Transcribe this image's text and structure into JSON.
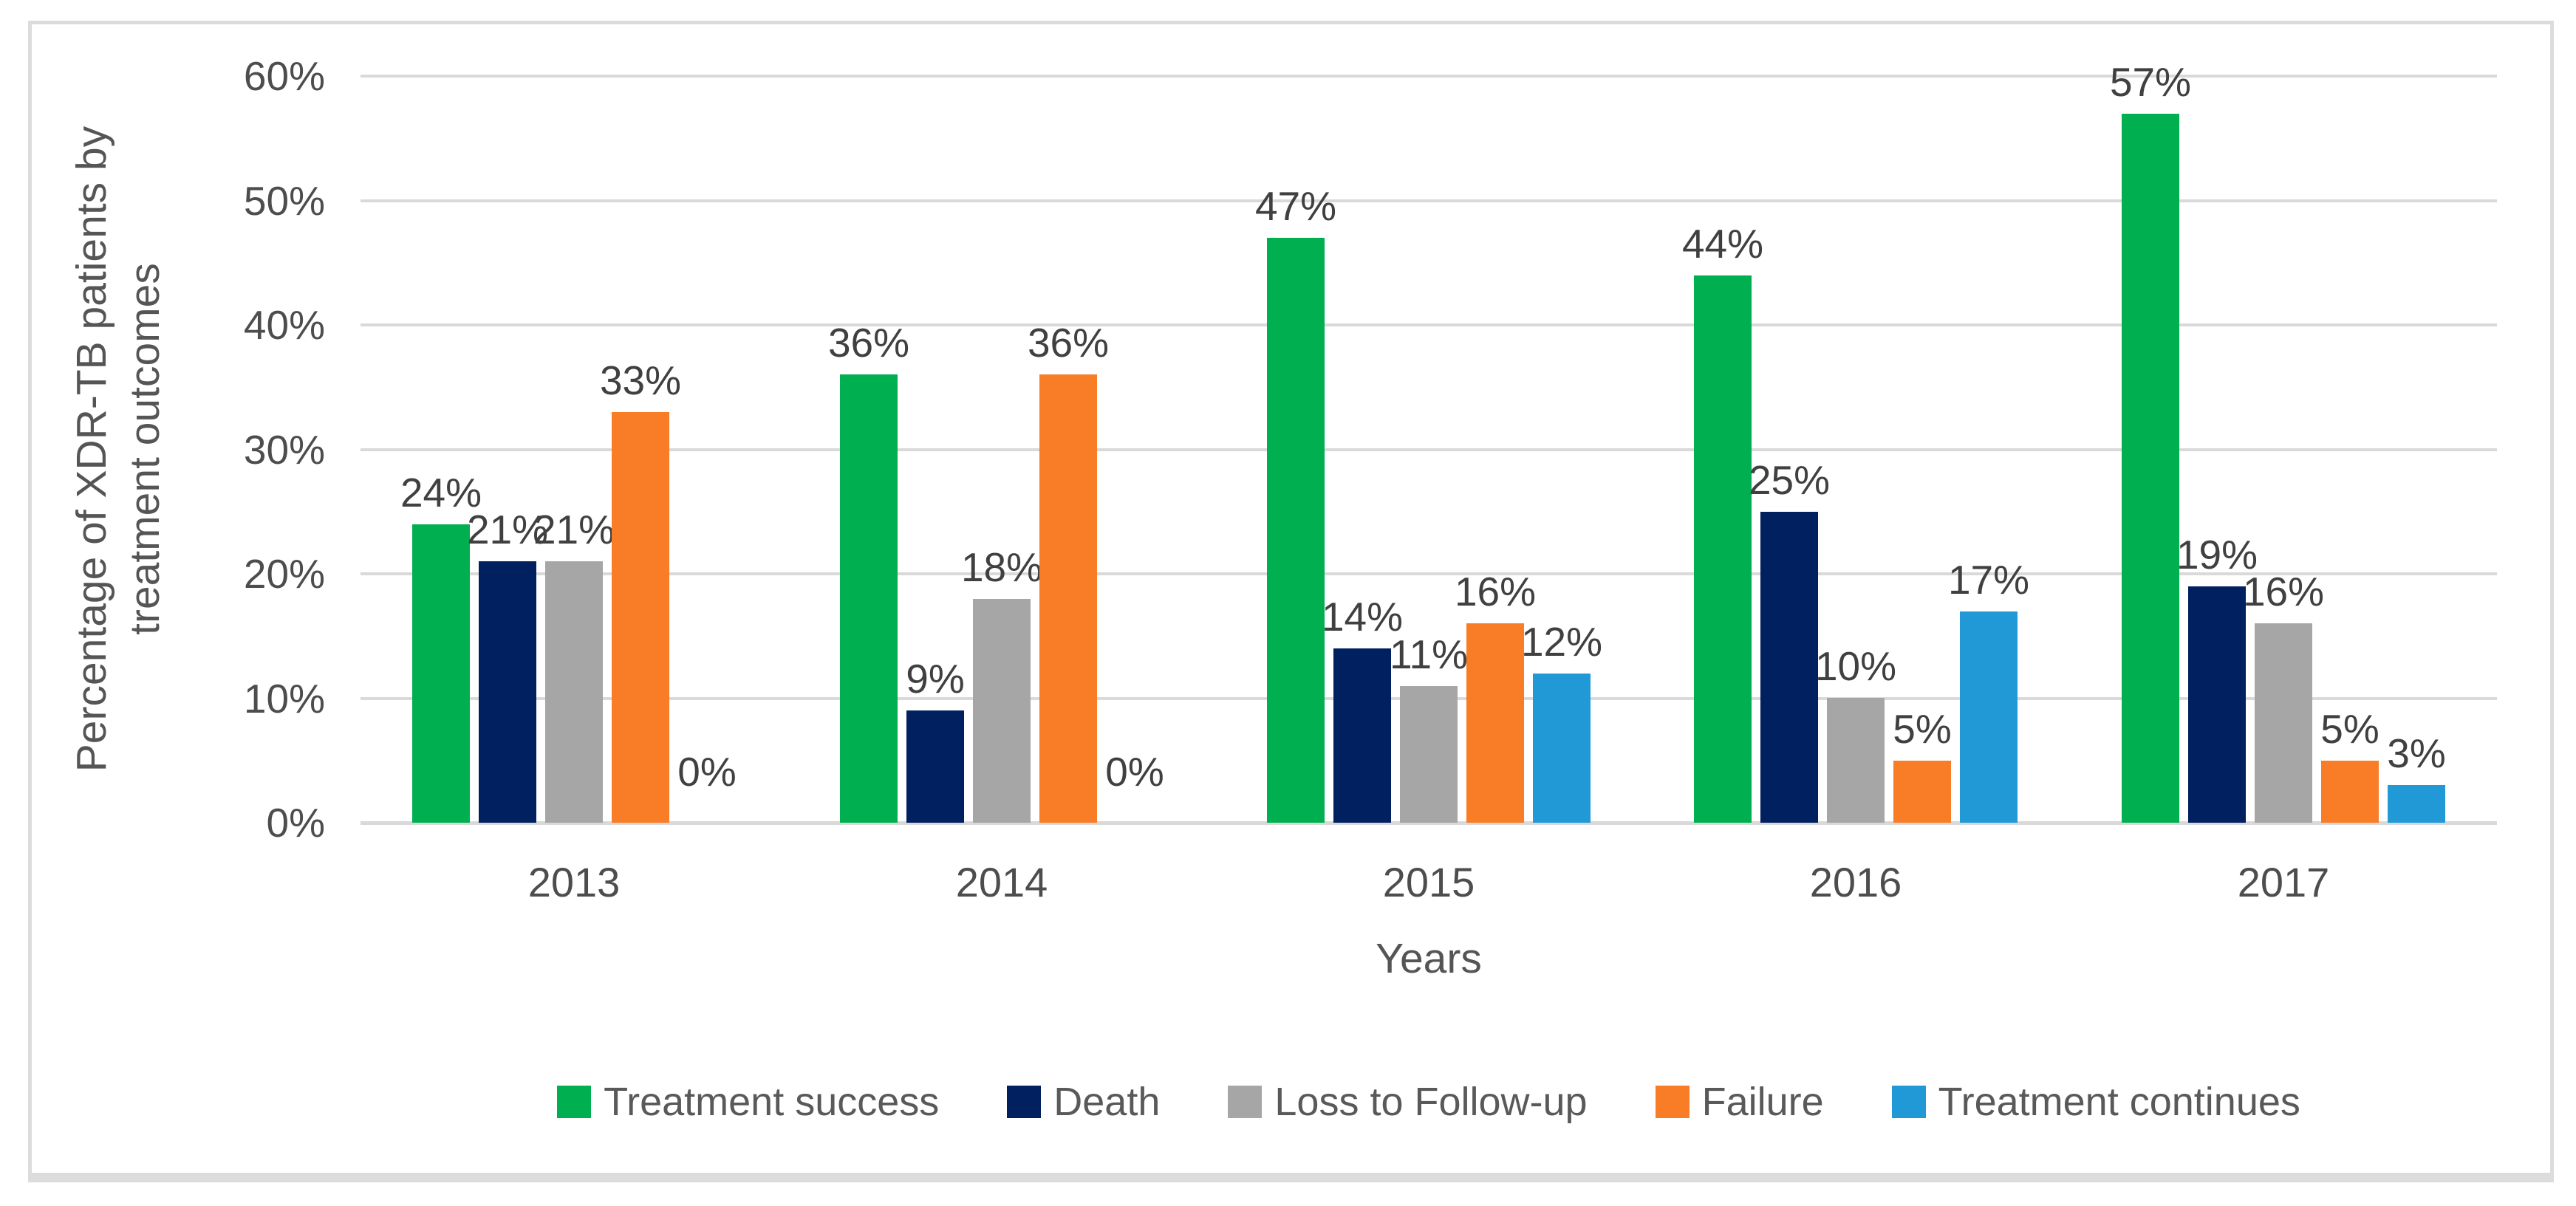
{
  "figure": {
    "ylabel_lines": [
      "Percentage of XDR-TB patients by",
      "treatment outcomes"
    ],
    "xlabel": "Years"
  },
  "chart_data": {
    "type": "bar",
    "title": "",
    "categories": [
      "2013",
      "2014",
      "2015",
      "2016",
      "2017"
    ],
    "xlabel": "Years",
    "ylabel": "Percentage of XDR-TB patients by treatment outcomes",
    "ylim": [
      0,
      60
    ],
    "y_ticks": [
      "0%",
      "10%",
      "20%",
      "30%",
      "40%",
      "50%",
      "60%"
    ],
    "grid": true,
    "legend_position": "bottom",
    "series": [
      {
        "name": "Treatment success",
        "color": "#00B050",
        "values": [
          24,
          36,
          47,
          44,
          57
        ],
        "labels": [
          "24%",
          "36%",
          "47%",
          "44%",
          "57%"
        ]
      },
      {
        "name": "Death",
        "color": "#002060",
        "values": [
          21,
          9,
          14,
          25,
          19
        ],
        "labels": [
          "21%",
          "9%",
          "14%",
          "25%",
          "19%"
        ]
      },
      {
        "name": "Loss to Follow-up",
        "color": "#A6A6A6",
        "values": [
          21,
          18,
          11,
          10,
          16
        ],
        "labels": [
          "21%",
          "18%",
          "11%",
          "10%",
          "16%"
        ]
      },
      {
        "name": "Failure",
        "color": "#F97D27",
        "values": [
          33,
          36,
          16,
          5,
          5
        ],
        "labels": [
          "33%",
          "36%",
          "16%",
          "5%",
          "5%"
        ]
      },
      {
        "name": "Treatment continues",
        "color": "#2199D6",
        "values": [
          0,
          0,
          12,
          17,
          3
        ],
        "labels": [
          "0%",
          "0%",
          "12%",
          "17%",
          "3%"
        ]
      }
    ]
  },
  "colors": {
    "background": "#FFFFFF",
    "frame_border": "#DCDCDC",
    "gridline": "#D9D9D9",
    "axis_text": "#4D4D4D",
    "data_label_text": "#404040",
    "legend_text": "#595959"
  }
}
